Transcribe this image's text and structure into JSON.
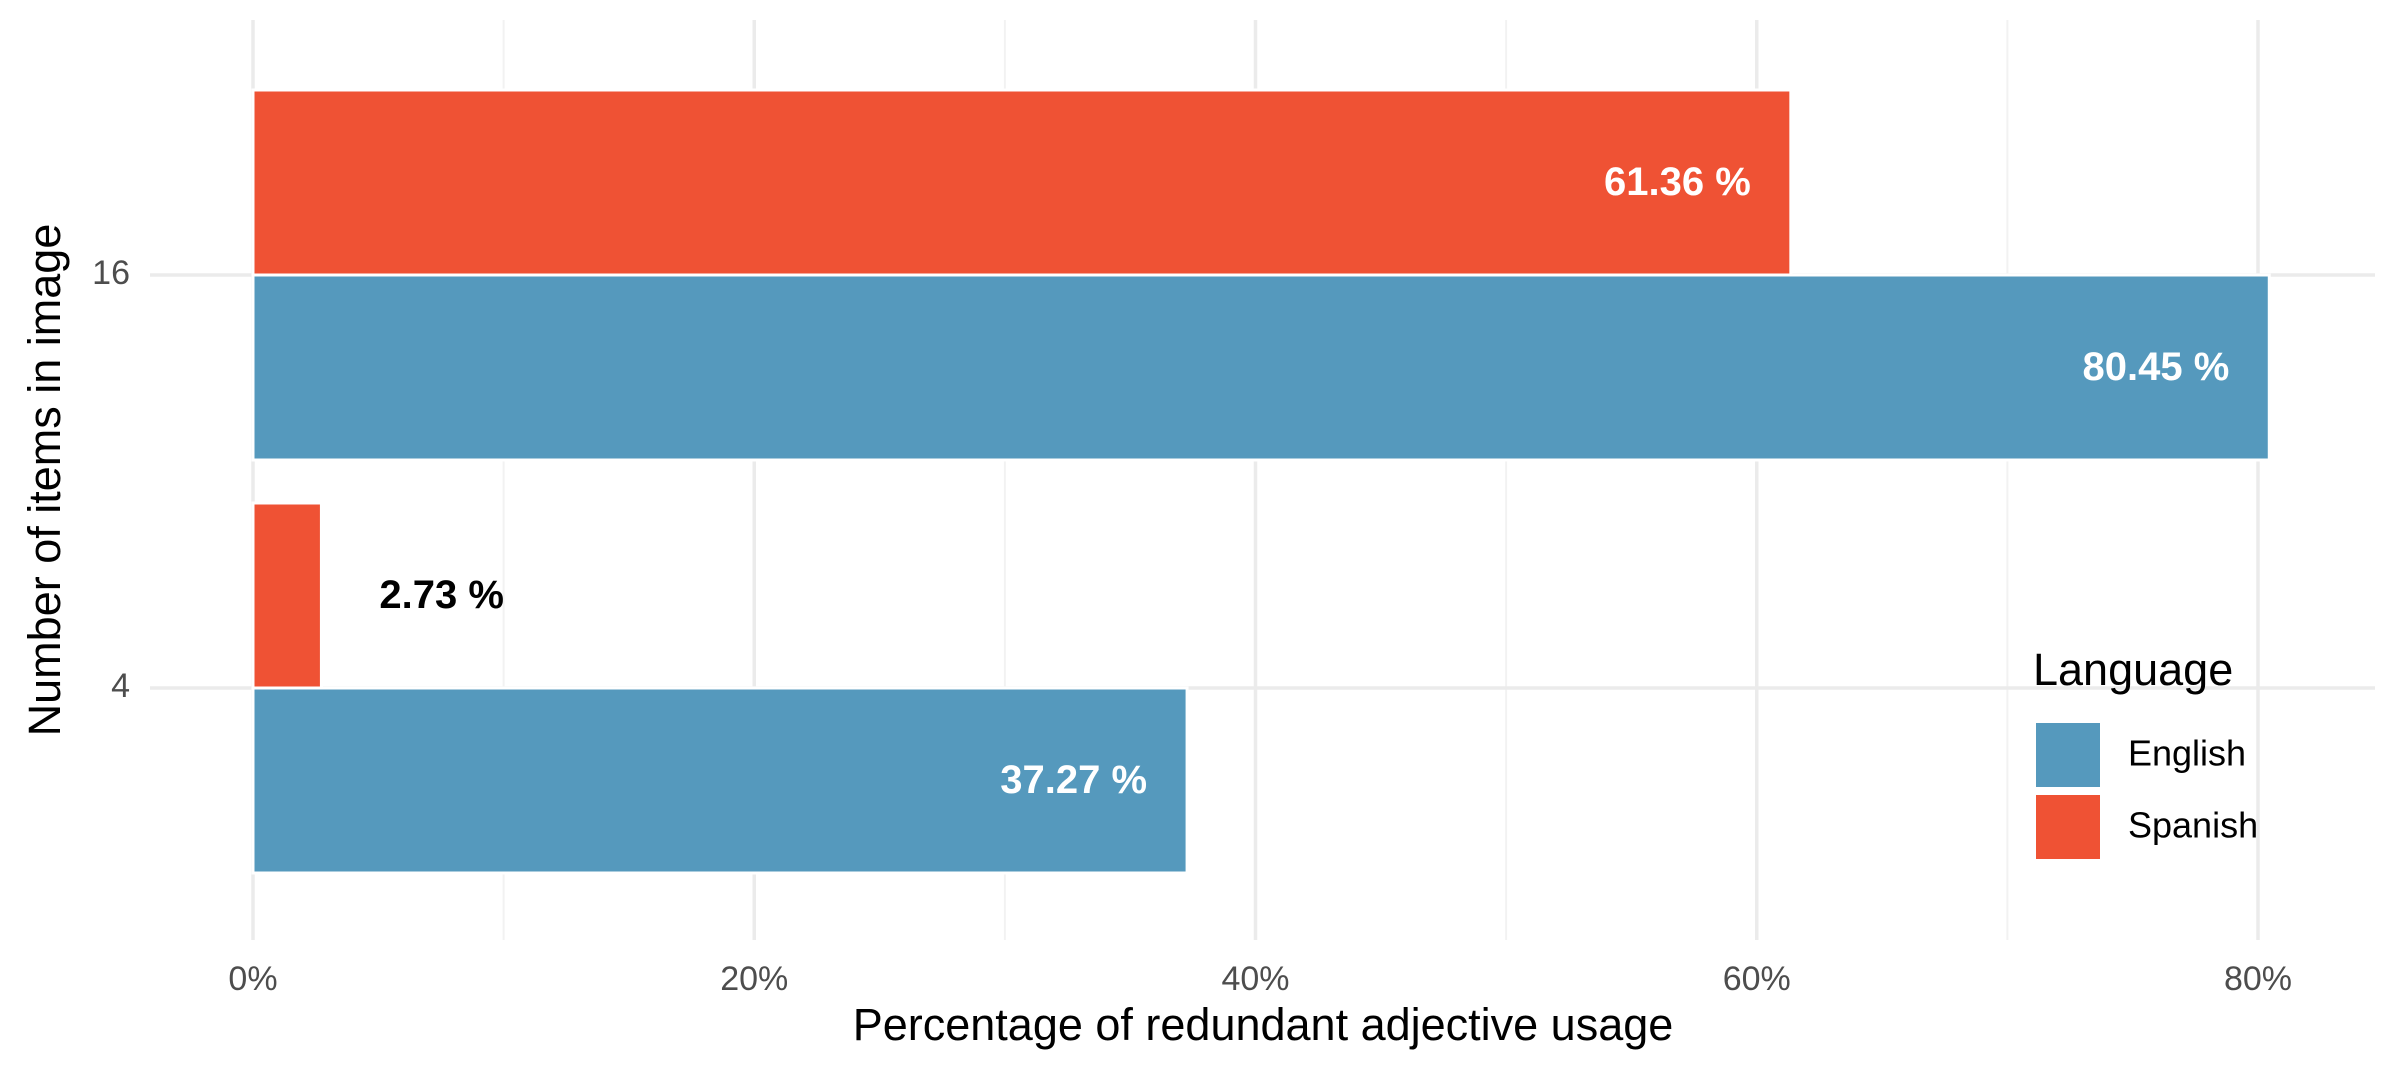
{
  "chart_data": {
    "type": "bar",
    "orientation": "horizontal",
    "categories": [
      "4",
      "16"
    ],
    "series": [
      {
        "name": "English",
        "color": "#5599BD",
        "values": [
          37.27,
          80.45
        ],
        "labels": [
          "37.27 %",
          "80.45 %"
        ]
      },
      {
        "name": "Spanish",
        "color": "#EF5234",
        "values": [
          2.73,
          61.36
        ],
        "labels": [
          "2.73 %",
          "61.36 %"
        ]
      }
    ],
    "xlabel": "Percentage of redundant adjective usage",
    "ylabel": "Number of items in image",
    "xlim": [
      0,
      84
    ],
    "x_ticks": [
      0,
      20,
      40,
      60,
      80
    ],
    "x_tick_labels": [
      "0%",
      "20%",
      "40%",
      "60%",
      "80%"
    ],
    "grid": true,
    "legend": {
      "title": "Language",
      "position": "right"
    }
  }
}
